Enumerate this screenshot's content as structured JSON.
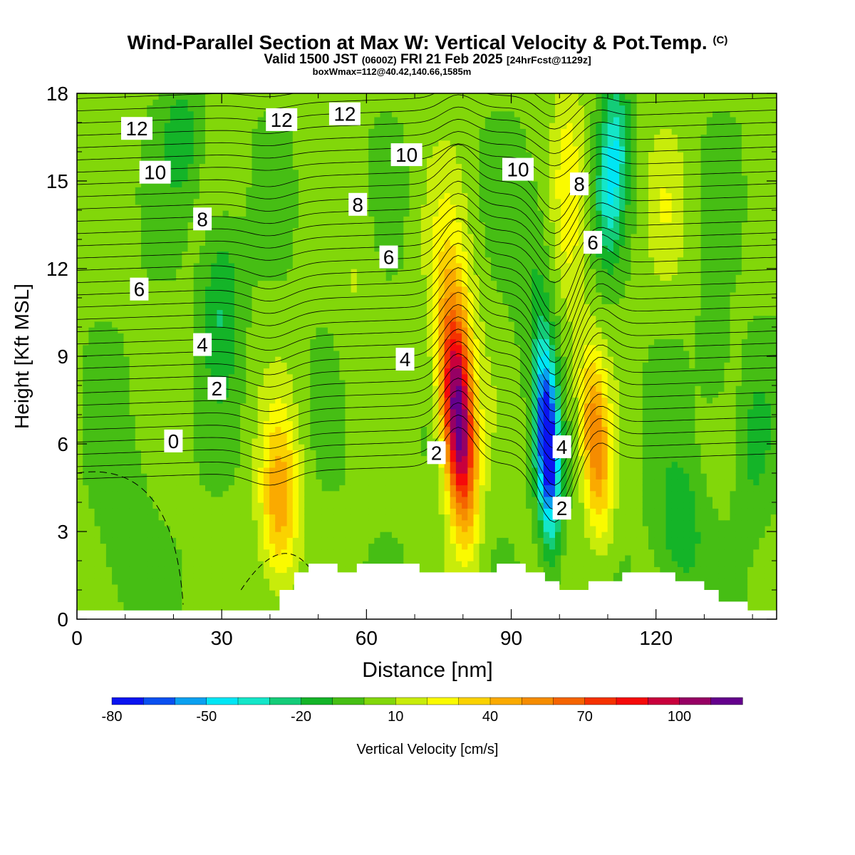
{
  "titles": {
    "main": "Wind-Parallel Section at Max W: Vertical Velocity & Pot.Temp.",
    "copyright": "(C)",
    "valid_prefix": "Valid 1500 JST",
    "valid_utc": "(0600Z)",
    "valid_date": "FRI 21 Feb 2025",
    "forecast": "[24hrFcst@1129z]",
    "box": "boxWmax=112@40.42,140.66,1585m"
  },
  "chart_data": {
    "type": "heatmap",
    "title": "Wind-Parallel Section at Max W: Vertical Velocity & Pot.Temp.",
    "xlabel": "Distance [nm]",
    "ylabel": "Height [Kft MSL]",
    "xlim": [
      0,
      145
    ],
    "ylim": [
      0,
      18
    ],
    "x_ticks": [
      0,
      30,
      60,
      90,
      120
    ],
    "y_ticks": [
      0,
      3,
      6,
      9,
      12,
      15,
      18
    ],
    "colorbar": {
      "label": "Vertical Velocity [cm/s]",
      "tick_labels": [
        -80,
        -50,
        -20,
        10,
        40,
        70,
        100
      ],
      "levels": [
        -80,
        -70,
        -60,
        -50,
        -40,
        -30,
        -20,
        -10,
        0,
        10,
        20,
        30,
        40,
        50,
        60,
        70,
        80,
        90,
        100,
        110,
        120
      ],
      "colors": [
        "#0a14f0",
        "#0a50f0",
        "#0aa0f0",
        "#00e6f5",
        "#14e6c8",
        "#14cc78",
        "#14b428",
        "#46be14",
        "#82d70a",
        "#c8ec0a",
        "#fafa00",
        "#fad200",
        "#faaa00",
        "#f58c00",
        "#f56400",
        "#f53200",
        "#f50a0a",
        "#c8003c",
        "#960064",
        "#64008c"
      ]
    },
    "w_features": [
      {
        "name": "updraft",
        "x": 79,
        "z": 6.8,
        "peak": 112
      },
      {
        "name": "downdraft",
        "x": 97,
        "z": 6.2,
        "peak": -55
      },
      {
        "name": "updraft",
        "x": 106,
        "z": 6.0,
        "peak": 45
      },
      {
        "name": "updraft",
        "x": 42,
        "z": 4.0,
        "peak": 40
      },
      {
        "name": "downdraft",
        "x": 111,
        "z": 15.5,
        "peak": -40
      }
    ],
    "theta_contour_labels": [
      {
        "text": "12",
        "x": 12.4,
        "z": 16.8
      },
      {
        "text": "12",
        "x": 42.4,
        "z": 17.1
      },
      {
        "text": "12",
        "x": 55.5,
        "z": 17.3
      },
      {
        "text": "10",
        "x": 16.2,
        "z": 15.3
      },
      {
        "text": "10",
        "x": 68.3,
        "z": 15.9
      },
      {
        "text": "10",
        "x": 91.4,
        "z": 15.4
      },
      {
        "text": "8",
        "x": 26.0,
        "z": 13.7
      },
      {
        "text": "8",
        "x": 58.2,
        "z": 14.2
      },
      {
        "text": "8",
        "x": 104.1,
        "z": 14.9
      },
      {
        "text": "6",
        "x": 12.9,
        "z": 11.3
      },
      {
        "text": "6",
        "x": 64.6,
        "z": 12.4
      },
      {
        "text": "6",
        "x": 106.9,
        "z": 12.9
      },
      {
        "text": "4",
        "x": 26.0,
        "z": 9.4
      },
      {
        "text": "4",
        "x": 68.0,
        "z": 8.9
      },
      {
        "text": "4",
        "x": 100.5,
        "z": 5.9
      },
      {
        "text": "2",
        "x": 29.0,
        "z": 7.9
      },
      {
        "text": "2",
        "x": 74.5,
        "z": 5.7
      },
      {
        "text": "2",
        "x": 100.5,
        "z": 3.8
      },
      {
        "text": "0",
        "x": 20.0,
        "z": 6.1
      }
    ]
  }
}
